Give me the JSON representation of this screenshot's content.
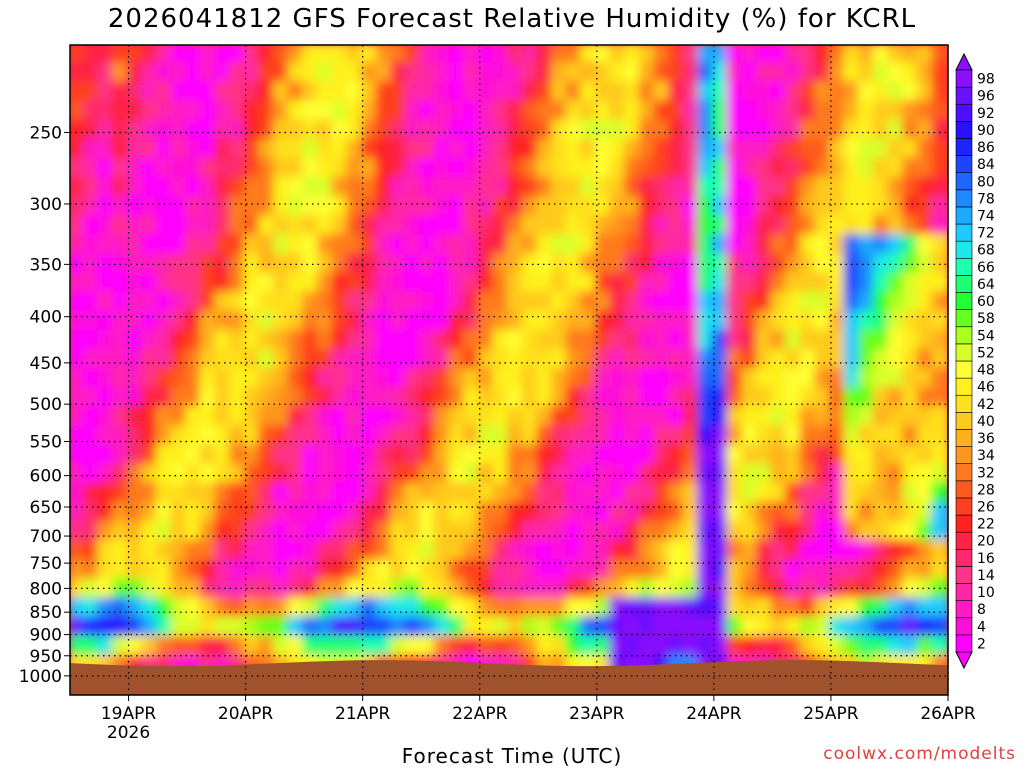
{
  "chart_data": {
    "type": "heatmap",
    "title": "2026041812 GFS Forecast Relative Humidity (%) for KCRL",
    "xlabel": "Forecast Time (UTC)",
    "ylabel": "",
    "credit": "coolwx.com/modelts",
    "x_ticks": [
      {
        "label": "19APR",
        "sublabel": "2026",
        "hours": 12
      },
      {
        "label": "20APR",
        "sublabel": "",
        "hours": 36
      },
      {
        "label": "21APR",
        "sublabel": "",
        "hours": 60
      },
      {
        "label": "22APR",
        "sublabel": "",
        "hours": 84
      },
      {
        "label": "23APR",
        "sublabel": "",
        "hours": 108
      },
      {
        "label": "24APR",
        "sublabel": "",
        "hours": 132
      },
      {
        "label": "25APR",
        "sublabel": "",
        "hours": 156
      },
      {
        "label": "26APR",
        "sublabel": "",
        "hours": 180
      }
    ],
    "xlim_hours": [
      0,
      180
    ],
    "y_ticks": [
      250,
      300,
      350,
      400,
      450,
      500,
      550,
      600,
      650,
      700,
      750,
      800,
      850,
      900,
      950,
      1000
    ],
    "ylim": [
      1050,
      200
    ],
    "y_axis_scale": "log (pressure, hPa)",
    "grid": true,
    "colorbar_levels": [
      2,
      4,
      8,
      10,
      14,
      16,
      20,
      22,
      26,
      28,
      32,
      34,
      36,
      40,
      42,
      46,
      48,
      52,
      54,
      58,
      60,
      64,
      66,
      68,
      72,
      74,
      78,
      80,
      84,
      86,
      90,
      92,
      96,
      98
    ],
    "colorbar_colors": [
      "#ff00ff",
      "#ff0dda",
      "#ff1ac4",
      "#ff26a8",
      "#ff3388",
      "#ff2a6e",
      "#ff2244",
      "#ff2222",
      "#ff3f1f",
      "#ff5a1e",
      "#ff7a1e",
      "#ff961e",
      "#ffb01e",
      "#ffca1e",
      "#ffe01e",
      "#fff01e",
      "#ffff33",
      "#d8ff2a",
      "#aaff1e",
      "#66ff1e",
      "#22ff33",
      "#1eff77",
      "#1effb0",
      "#1ee8e8",
      "#1ecaff",
      "#1eaaff",
      "#1e88ff",
      "#1e66ff",
      "#1e44ff",
      "#1e22ff",
      "#2a10ff",
      "#4a10ff",
      "#6a10ff",
      "#8a10ff"
    ],
    "terrain_color": "#a0522d",
    "surface_pressure_hpa": 968,
    "note_visible": ""
  }
}
